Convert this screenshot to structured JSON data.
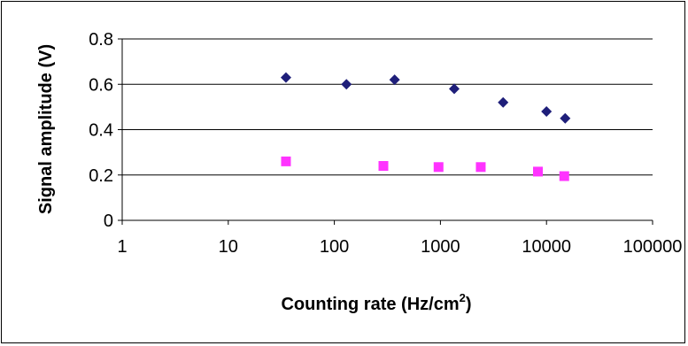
{
  "chart_data": {
    "type": "scatter",
    "title": "",
    "xlabel": "Counting rate (Hz/cm",
    "xlabel_superscript": "2",
    "xlabel_suffix": ")",
    "ylabel": "Signal amplitude (V)",
    "x_scale": "log",
    "xlim": [
      1,
      100000
    ],
    "ylim": [
      0,
      0.8
    ],
    "x_ticks": [
      1,
      10,
      100,
      1000,
      10000,
      100000
    ],
    "x_tick_labels": [
      "1",
      "10",
      "100",
      "1000",
      "10000",
      "100000"
    ],
    "y_ticks": [
      0,
      0.2,
      0.4,
      0.6,
      0.8
    ],
    "y_tick_labels": [
      "0",
      "0.2",
      "0.4",
      "0.6",
      "0.8"
    ],
    "grid": "horizontal",
    "legend": "none",
    "series": [
      {
        "marker": "diamond",
        "color": "#1F1F7A",
        "points": [
          {
            "x": 35,
            "y": 0.63
          },
          {
            "x": 130,
            "y": 0.6
          },
          {
            "x": 370,
            "y": 0.62
          },
          {
            "x": 1350,
            "y": 0.58
          },
          {
            "x": 3900,
            "y": 0.52
          },
          {
            "x": 10000,
            "y": 0.48
          },
          {
            "x": 15000,
            "y": 0.45
          }
        ]
      },
      {
        "marker": "square",
        "color": "#FF33FF",
        "points": [
          {
            "x": 35,
            "y": 0.26
          },
          {
            "x": 290,
            "y": 0.24
          },
          {
            "x": 960,
            "y": 0.235
          },
          {
            "x": 2400,
            "y": 0.235
          },
          {
            "x": 8300,
            "y": 0.215
          },
          {
            "x": 14700,
            "y": 0.195
          }
        ]
      }
    ]
  }
}
